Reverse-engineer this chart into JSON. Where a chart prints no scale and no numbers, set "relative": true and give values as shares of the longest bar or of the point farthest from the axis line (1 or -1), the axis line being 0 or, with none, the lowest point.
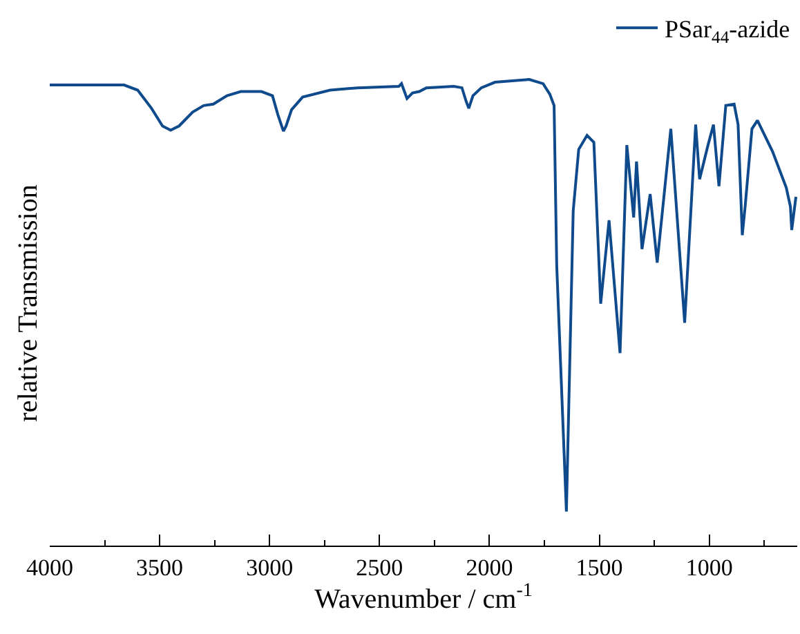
{
  "chart_data": {
    "type": "line",
    "relative": true,
    "xlabel": "Wavenumber / cm$^{-1}$",
    "ylabel": "relative Transmission",
    "x": [
      4000,
      3662,
      3600,
      3537,
      3487,
      3450,
      3412,
      3350,
      3300,
      3256,
      3194,
      3131,
      3037,
      2987,
      2962,
      2937,
      2925,
      2900,
      2850,
      2725,
      2600,
      2412,
      2400,
      2375,
      2350,
      2319,
      2287,
      2162,
      2125,
      2106,
      2094,
      2075,
      2037,
      1975,
      1819,
      1756,
      1725,
      1706,
      1694,
      1650,
      1619,
      1594,
      1556,
      1525,
      1494,
      1456,
      1406,
      1375,
      1344,
      1331,
      1306,
      1269,
      1237,
      1175,
      1112,
      1062,
      1044,
      1006,
      981,
      956,
      925,
      887,
      869,
      850,
      837,
      806,
      781,
      712,
      650,
      631,
      625,
      606
    ],
    "series": [
      {
        "name": "PSar$_{44}$-azide",
        "color": "#0e4a8c",
        "values": [
          0.988,
          0.988,
          0.977,
          0.938,
          0.9,
          0.891,
          0.9,
          0.93,
          0.944,
          0.947,
          0.965,
          0.974,
          0.974,
          0.965,
          0.924,
          0.889,
          0.9,
          0.935,
          0.962,
          0.977,
          0.982,
          0.985,
          0.991,
          0.959,
          0.971,
          0.974,
          0.982,
          0.985,
          0.982,
          0.953,
          0.938,
          0.965,
          0.982,
          0.994,
          1.0,
          0.991,
          0.968,
          0.944,
          0.601,
          0.073,
          0.718,
          0.85,
          0.88,
          0.865,
          0.519,
          0.698,
          0.413,
          0.859,
          0.704,
          0.824,
          0.636,
          0.754,
          0.607,
          0.894,
          0.478,
          0.903,
          0.786,
          0.859,
          0.903,
          0.771,
          0.944,
          0.947,
          0.903,
          0.666,
          0.727,
          0.894,
          0.912,
          0.845,
          0.768,
          0.727,
          0.677,
          0.748
        ]
      }
    ],
    "xlim": [
      4000,
      600
    ],
    "xticks": [
      4000,
      {
        "value": 3750,
        "label": null
      },
      3500,
      {
        "value": 3250,
        "label": null
      },
      3000,
      {
        "value": 2750,
        "label": null
      },
      2500,
      {
        "value": 2250,
        "label": null
      },
      2000,
      {
        "value": 1750,
        "label": null
      },
      1500,
      {
        "value": 1250,
        "label": null
      },
      1000,
      {
        "value": 750,
        "label": null
      }
    ],
    "tick_labels": "x",
    "legend": "top right",
    "marker": "none",
    "line_style": "solid"
  }
}
